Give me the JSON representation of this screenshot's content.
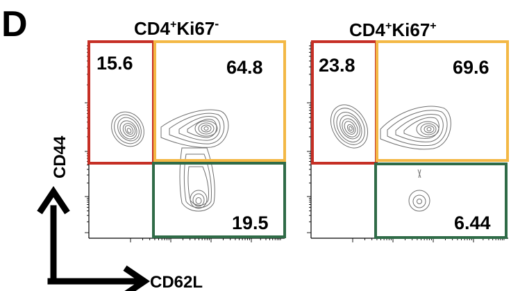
{
  "panel_letter": "D",
  "y_axis_label": "CD44",
  "x_axis_label": "CD62L",
  "colors": {
    "gate_top_left": "#c62f25",
    "gate_top_right": "#f3b845",
    "gate_bottom_right": "#2f6b47",
    "contour": "#6f6f6f",
    "axis": "#000000"
  },
  "chart_data": [
    {
      "type": "contour",
      "title_main": "CD4",
      "title_sup1": "+",
      "title_mid": "Ki67",
      "title_sup2": "-",
      "gates": [
        {
          "position": "top-left",
          "label": "15.6"
        },
        {
          "position": "top-right",
          "label": "64.8"
        },
        {
          "position": "bottom-right",
          "label": "19.5"
        }
      ]
    },
    {
      "type": "contour",
      "title_main": "CD4",
      "title_sup1": "+",
      "title_mid": "Ki67",
      "title_sup2": "+",
      "gates": [
        {
          "position": "top-left",
          "label": "23.8"
        },
        {
          "position": "top-right",
          "label": "69.6"
        },
        {
          "position": "bottom-right",
          "label": "6.44"
        }
      ]
    }
  ]
}
